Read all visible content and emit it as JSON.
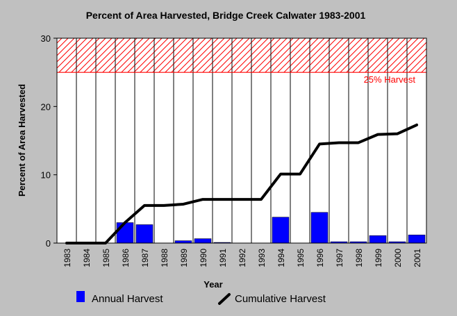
{
  "chart_data": {
    "type": "bar",
    "title": "Percent of Area Harvested, Bridge Creek Calwater 1983-2001",
    "xlabel": "Year",
    "ylabel": "Percent of Area Harvested",
    "ylim": [
      0,
      30
    ],
    "yticks": [
      "0",
      "10",
      "20",
      "30"
    ],
    "categories": [
      "1983",
      "1984",
      "1985",
      "1986",
      "1987",
      "1988",
      "1989",
      "1990",
      "1991",
      "1992",
      "1993",
      "1994",
      "1995",
      "1996",
      "1997",
      "1998",
      "1999",
      "2000",
      "2001"
    ],
    "series": [
      {
        "name": "Annual Harvest",
        "type": "bar",
        "color": "#0000ff",
        "values": [
          0,
          0,
          0,
          3.0,
          2.7,
          0,
          0.35,
          0.65,
          0.1,
          0,
          0,
          3.8,
          0,
          4.5,
          0.2,
          0.2,
          1.1,
          0.2,
          1.2
        ]
      },
      {
        "name": "Cumulative Harvest",
        "type": "line",
        "color": "#000000",
        "values": [
          0,
          0,
          0,
          3.0,
          5.5,
          5.5,
          5.7,
          6.4,
          6.4,
          6.4,
          6.4,
          10.1,
          10.1,
          14.5,
          14.7,
          14.7,
          15.9,
          16.0,
          17.3
        ]
      }
    ],
    "threshold": {
      "label": "25% Harvest",
      "value": 25,
      "band_to": 30,
      "color": "#ff0000"
    },
    "grid": {
      "vertical": true
    },
    "legend_position": "bottom"
  }
}
